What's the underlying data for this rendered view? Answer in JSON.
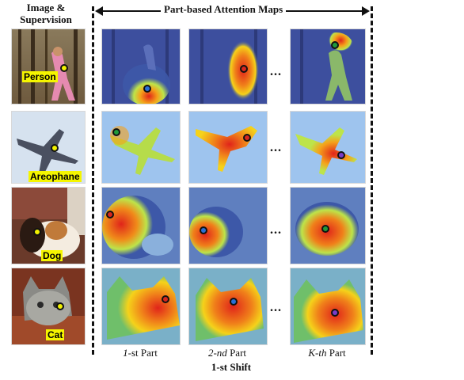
{
  "header": {
    "left_title_line1": "Image &",
    "left_title_line2": "Supervision",
    "attention_title": "Part-based Attention Maps"
  },
  "rows": [
    {
      "label": "Person",
      "supervision_color": "#f2f200",
      "part_dot_colors": [
        "#2a6fd6",
        "#d8261f",
        "#1f9a3a"
      ]
    },
    {
      "label": "Areophane",
      "supervision_color": "#f2f200",
      "part_dot_colors": [
        "#1f9a3a",
        "#d8261f",
        "#7a3cc8"
      ]
    },
    {
      "label": "Dog",
      "supervision_color": "#f2f200",
      "part_dot_colors": [
        "#d8261f",
        "#2a6fd6",
        "#1f9a3a"
      ]
    },
    {
      "label": "Cat",
      "supervision_color": "#f2f200",
      "part_dot_colors": [
        "#d8261f",
        "#2a6fd6",
        "#7a3cc8"
      ]
    }
  ],
  "ellipsis": "...",
  "columns": [
    {
      "italic": "1",
      "rest": "-st Part"
    },
    {
      "italic": "2-nd",
      "rest": " Part"
    },
    {
      "italic": "K-th",
      "rest": " Part"
    }
  ],
  "footer": {
    "shift_label": "1-st Shift"
  }
}
